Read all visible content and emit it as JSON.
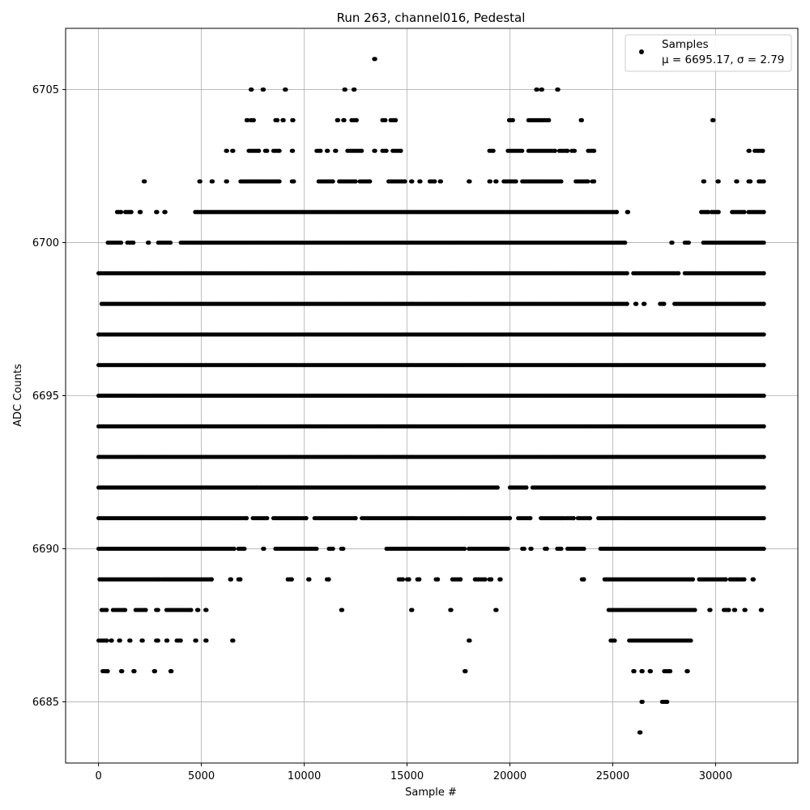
{
  "chart_data": {
    "type": "scatter",
    "title": "Run 263, channel016, Pedestal",
    "xlabel": "Sample #",
    "ylabel": "ADC Counts",
    "xlim": [
      -1600,
      34000
    ],
    "ylim": [
      6683,
      6707
    ],
    "x_ticks": [
      0,
      5000,
      10000,
      15000,
      20000,
      25000,
      30000
    ],
    "y_ticks": [
      6685,
      6690,
      6695,
      6700,
      6705
    ],
    "grid": true,
    "legend_position": "top-right",
    "marker_color": "#000000",
    "n_samples": 32400,
    "series": [
      {
        "name": "Samples",
        "mean": 6695.17,
        "sigma": 2.79,
        "legend_stats": "μ = 6695.17, σ = 2.79",
        "bands": [
          {
            "y": 6706,
            "segments": [
              [
                13400,
                13450
              ]
            ]
          },
          {
            "y": 6705,
            "segments": [
              [
                7400,
                7450
              ],
              [
                7980,
                8030
              ],
              [
                9060,
                9110
              ],
              [
                11950,
                12000
              ],
              [
                12400,
                12450
              ],
              [
                21280,
                21330
              ],
              [
                21520,
                21570
              ],
              [
                22300,
                22350
              ]
            ]
          },
          {
            "y": 6704,
            "segments": [
              [
                7200,
                7250
              ],
              [
                7400,
                7550
              ],
              [
                8600,
                8700
              ],
              [
                8950,
                9000
              ],
              [
                9420,
                9470
              ],
              [
                11600,
                11650
              ],
              [
                11900,
                11950
              ],
              [
                12300,
                12550
              ],
              [
                13800,
                13950
              ],
              [
                14200,
                14450
              ],
              [
                19960,
                20150
              ],
              [
                20900,
                21900
              ],
              [
                23450,
                23500
              ],
              [
                29850,
                29900
              ]
            ]
          },
          {
            "y": 6703,
            "segments": [
              [
                6200,
                6250
              ],
              [
                6500,
                6550
              ],
              [
                7300,
                7800
              ],
              [
                8100,
                8200
              ],
              [
                8500,
                8800
              ],
              [
                9400,
                9450
              ],
              [
                10600,
                10800
              ],
              [
                11100,
                11150
              ],
              [
                11500,
                11550
              ],
              [
                12100,
                12800
              ],
              [
                13400,
                13450
              ],
              [
                13800,
                14000
              ],
              [
                14300,
                14700
              ],
              [
                19000,
                19200
              ],
              [
                19900,
                20600
              ],
              [
                20900,
                22200
              ],
              [
                22400,
                22800
              ],
              [
                23000,
                23150
              ],
              [
                23800,
                24100
              ],
              [
                31600,
                31650
              ],
              [
                31900,
                32300
              ]
            ]
          },
          {
            "y": 6702,
            "segments": [
              [
                2200,
                2250
              ],
              [
                4900,
                4950
              ],
              [
                5500,
                5550
              ],
              [
                6200,
                6250
              ],
              [
                6900,
                8800
              ],
              [
                9400,
                9500
              ],
              [
                10700,
                11400
              ],
              [
                11700,
                12500
              ],
              [
                12700,
                13200
              ],
              [
                14100,
                14900
              ],
              [
                15200,
                15250
              ],
              [
                15600,
                15650
              ],
              [
                16100,
                16350
              ],
              [
                16600,
                16650
              ],
              [
                18000,
                18050
              ],
              [
                19000,
                19050
              ],
              [
                19300,
                19350
              ],
              [
                19700,
                20300
              ],
              [
                20600,
                22500
              ],
              [
                23200,
                23800
              ],
              [
                24000,
                24100
              ],
              [
                29400,
                29450
              ],
              [
                30100,
                30150
              ],
              [
                31000,
                31050
              ],
              [
                31600,
                31700
              ],
              [
                32100,
                32200
              ],
              [
                32300,
                32350
              ]
            ]
          },
          {
            "y": 6701,
            "segments": [
              [
                900,
                1100
              ],
              [
                1300,
                1600
              ],
              [
                2000,
                2050
              ],
              [
                2800,
                2850
              ],
              [
                3200,
                3250
              ],
              [
                4700,
                25200
              ],
              [
                25700,
                25750
              ],
              [
                29300,
                29650
              ],
              [
                29800,
                30150
              ],
              [
                30800,
                31400
              ],
              [
                31600,
                32350
              ]
            ]
          },
          {
            "y": 6700,
            "segments": [
              [
                450,
                1100
              ],
              [
                1400,
                1700
              ],
              [
                2400,
                2450
              ],
              [
                2900,
                3500
              ],
              [
                4000,
                25600
              ],
              [
                27850,
                27900
              ],
              [
                28500,
                28700
              ],
              [
                29400,
                32350
              ]
            ]
          },
          {
            "y": 6699,
            "segments": [
              [
                0,
                25700
              ],
              [
                26000,
                28200
              ],
              [
                28500,
                32350
              ]
            ]
          },
          {
            "y": 6698,
            "segments": [
              [
                150,
                25700
              ],
              [
                26100,
                26150
              ],
              [
                26500,
                26550
              ],
              [
                27300,
                27500
              ],
              [
                28000,
                32350
              ]
            ]
          },
          {
            "y": 6697,
            "segments": [
              [
                0,
                32350
              ]
            ]
          },
          {
            "y": 6696,
            "segments": [
              [
                0,
                32350
              ]
            ]
          },
          {
            "y": 6695,
            "segments": [
              [
                0,
                32350
              ]
            ]
          },
          {
            "y": 6694,
            "segments": [
              [
                0,
                32350
              ]
            ]
          },
          {
            "y": 6693,
            "segments": [
              [
                0,
                32350
              ]
            ]
          },
          {
            "y": 6692,
            "segments": [
              [
                0,
                7700
              ],
              [
                7800,
                19400
              ],
              [
                20000,
                20800
              ],
              [
                21100,
                32350
              ]
            ]
          },
          {
            "y": 6691,
            "segments": [
              [
                0,
                7200
              ],
              [
                7500,
                8200
              ],
              [
                8500,
                10100
              ],
              [
                10500,
                12500
              ],
              [
                12800,
                20000
              ],
              [
                20400,
                21000
              ],
              [
                21500,
                22600
              ],
              [
                22700,
                23100
              ],
              [
                23300,
                23900
              ],
              [
                24300,
                32350
              ]
            ]
          },
          {
            "y": 6690,
            "segments": [
              [
                0,
                6600
              ],
              [
                6800,
                7100
              ],
              [
                8000,
                8050
              ],
              [
                8600,
                10600
              ],
              [
                11200,
                11400
              ],
              [
                11800,
                11900
              ],
              [
                14000,
                17800
              ],
              [
                18000,
                19200
              ],
              [
                19300,
                19900
              ],
              [
                20600,
                20700
              ],
              [
                21000,
                21050
              ],
              [
                21700,
                21800
              ],
              [
                22300,
                22500
              ],
              [
                22800,
                23600
              ],
              [
                24400,
                32350
              ]
            ]
          },
          {
            "y": 6689,
            "segments": [
              [
                50,
                3000
              ],
              [
                3100,
                5500
              ],
              [
                6400,
                6450
              ],
              [
                6800,
                6900
              ],
              [
                9200,
                9400
              ],
              [
                10200,
                10250
              ],
              [
                11100,
                11200
              ],
              [
                14600,
                14800
              ],
              [
                15000,
                15100
              ],
              [
                15500,
                15600
              ],
              [
                16400,
                16500
              ],
              [
                17200,
                17600
              ],
              [
                18300,
                18500
              ],
              [
                18600,
                18800
              ],
              [
                19000,
                19100
              ],
              [
                19500,
                19550
              ],
              [
                23500,
                23600
              ],
              [
                24600,
                28900
              ],
              [
                29200,
                30500
              ],
              [
                30700,
                31400
              ],
              [
                31800,
                31850
              ]
            ]
          },
          {
            "y": 6688,
            "segments": [
              [
                150,
                400
              ],
              [
                700,
                1300
              ],
              [
                1800,
                2300
              ],
              [
                2800,
                2900
              ],
              [
                3300,
                4500
              ],
              [
                4800,
                4850
              ],
              [
                5200,
                5250
              ],
              [
                11800,
                11850
              ],
              [
                15200,
                15250
              ],
              [
                17100,
                17150
              ],
              [
                19300,
                19350
              ],
              [
                24800,
                29000
              ],
              [
                29700,
                29750
              ],
              [
                30400,
                30650
              ],
              [
                30900,
                30950
              ],
              [
                31400,
                31450
              ],
              [
                32200,
                32250
              ]
            ]
          },
          {
            "y": 6687,
            "segments": [
              [
                0,
                400
              ],
              [
                600,
                650
              ],
              [
                1000,
                1050
              ],
              [
                1500,
                1550
              ],
              [
                2100,
                2150
              ],
              [
                2800,
                2900
              ],
              [
                3300,
                3350
              ],
              [
                3800,
                4000
              ],
              [
                4700,
                4750
              ],
              [
                5200,
                5250
              ],
              [
                6500,
                6550
              ],
              [
                18000,
                18050
              ],
              [
                24900,
                25100
              ],
              [
                25800,
                28800
              ]
            ]
          },
          {
            "y": 6686,
            "segments": [
              [
                200,
                450
              ],
              [
                1100,
                1150
              ],
              [
                1700,
                1750
              ],
              [
                2700,
                2750
              ],
              [
                3500,
                3550
              ],
              [
                17800,
                17850
              ],
              [
                26000,
                26050
              ],
              [
                26400,
                26450
              ],
              [
                26800,
                26850
              ],
              [
                27500,
                27800
              ],
              [
                28600,
                28650
              ]
            ]
          },
          {
            "y": 6685,
            "segments": [
              [
                26400,
                26450
              ],
              [
                27400,
                27650
              ]
            ]
          },
          {
            "y": 6684,
            "segments": [
              [
                26300,
                26350
              ]
            ]
          }
        ]
      }
    ]
  }
}
